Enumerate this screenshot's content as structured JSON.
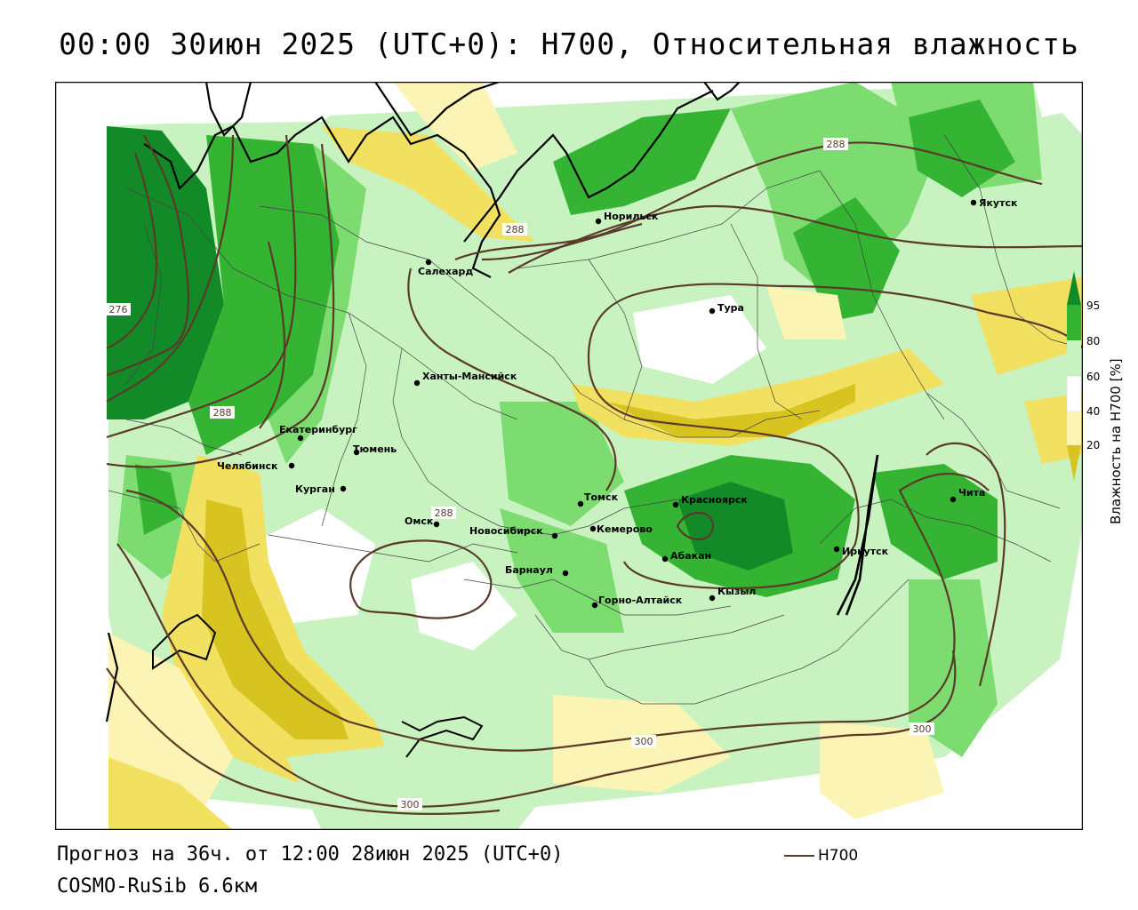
{
  "header": {
    "title": "00:00 30июн 2025 (UTC+0): H700, Относительная влажность"
  },
  "footer": {
    "forecast": "Прогноз на 36ч. от 12:00 28июн 2025 (UTC+0)",
    "model": "COSMO-RuSib 6.6км",
    "series_label": "H700"
  },
  "legend": {
    "title": "Влажность на H700 [%]",
    "levels": [
      "95",
      "80",
      "60",
      "40",
      "20"
    ],
    "colors": {
      "dry_dark": "#d8c420",
      "dry": "#f2e060",
      "dry_light": "#fcf4b4",
      "neutral": "#ffffff",
      "moist_light": "#c8f2c0",
      "moist": "#7cdc70",
      "wet": "#34b432",
      "very_wet": "#138a28"
    }
  },
  "map": {
    "contour_color": "#5b3a29",
    "contour_labels": [
      "288",
      "288",
      "276",
      "288",
      "288",
      "300",
      "300",
      "300"
    ],
    "cities": [
      {
        "name": "Якутск"
      },
      {
        "name": "Норильск"
      },
      {
        "name": "Салехард"
      },
      {
        "name": "Тура"
      },
      {
        "name": "Ханты-Мансийск"
      },
      {
        "name": "Екатеринбург"
      },
      {
        "name": "Тюмень"
      },
      {
        "name": "Челябинск"
      },
      {
        "name": "Курган"
      },
      {
        "name": "Омск"
      },
      {
        "name": "Новосибирск"
      },
      {
        "name": "Томск"
      },
      {
        "name": "Кемерово"
      },
      {
        "name": "Красноярск"
      },
      {
        "name": "Абакан"
      },
      {
        "name": "Барнаул"
      },
      {
        "name": "Горно-Алтайск"
      },
      {
        "name": "Кызыл"
      },
      {
        "name": "Иркутск"
      },
      {
        "name": "Чита"
      }
    ]
  }
}
